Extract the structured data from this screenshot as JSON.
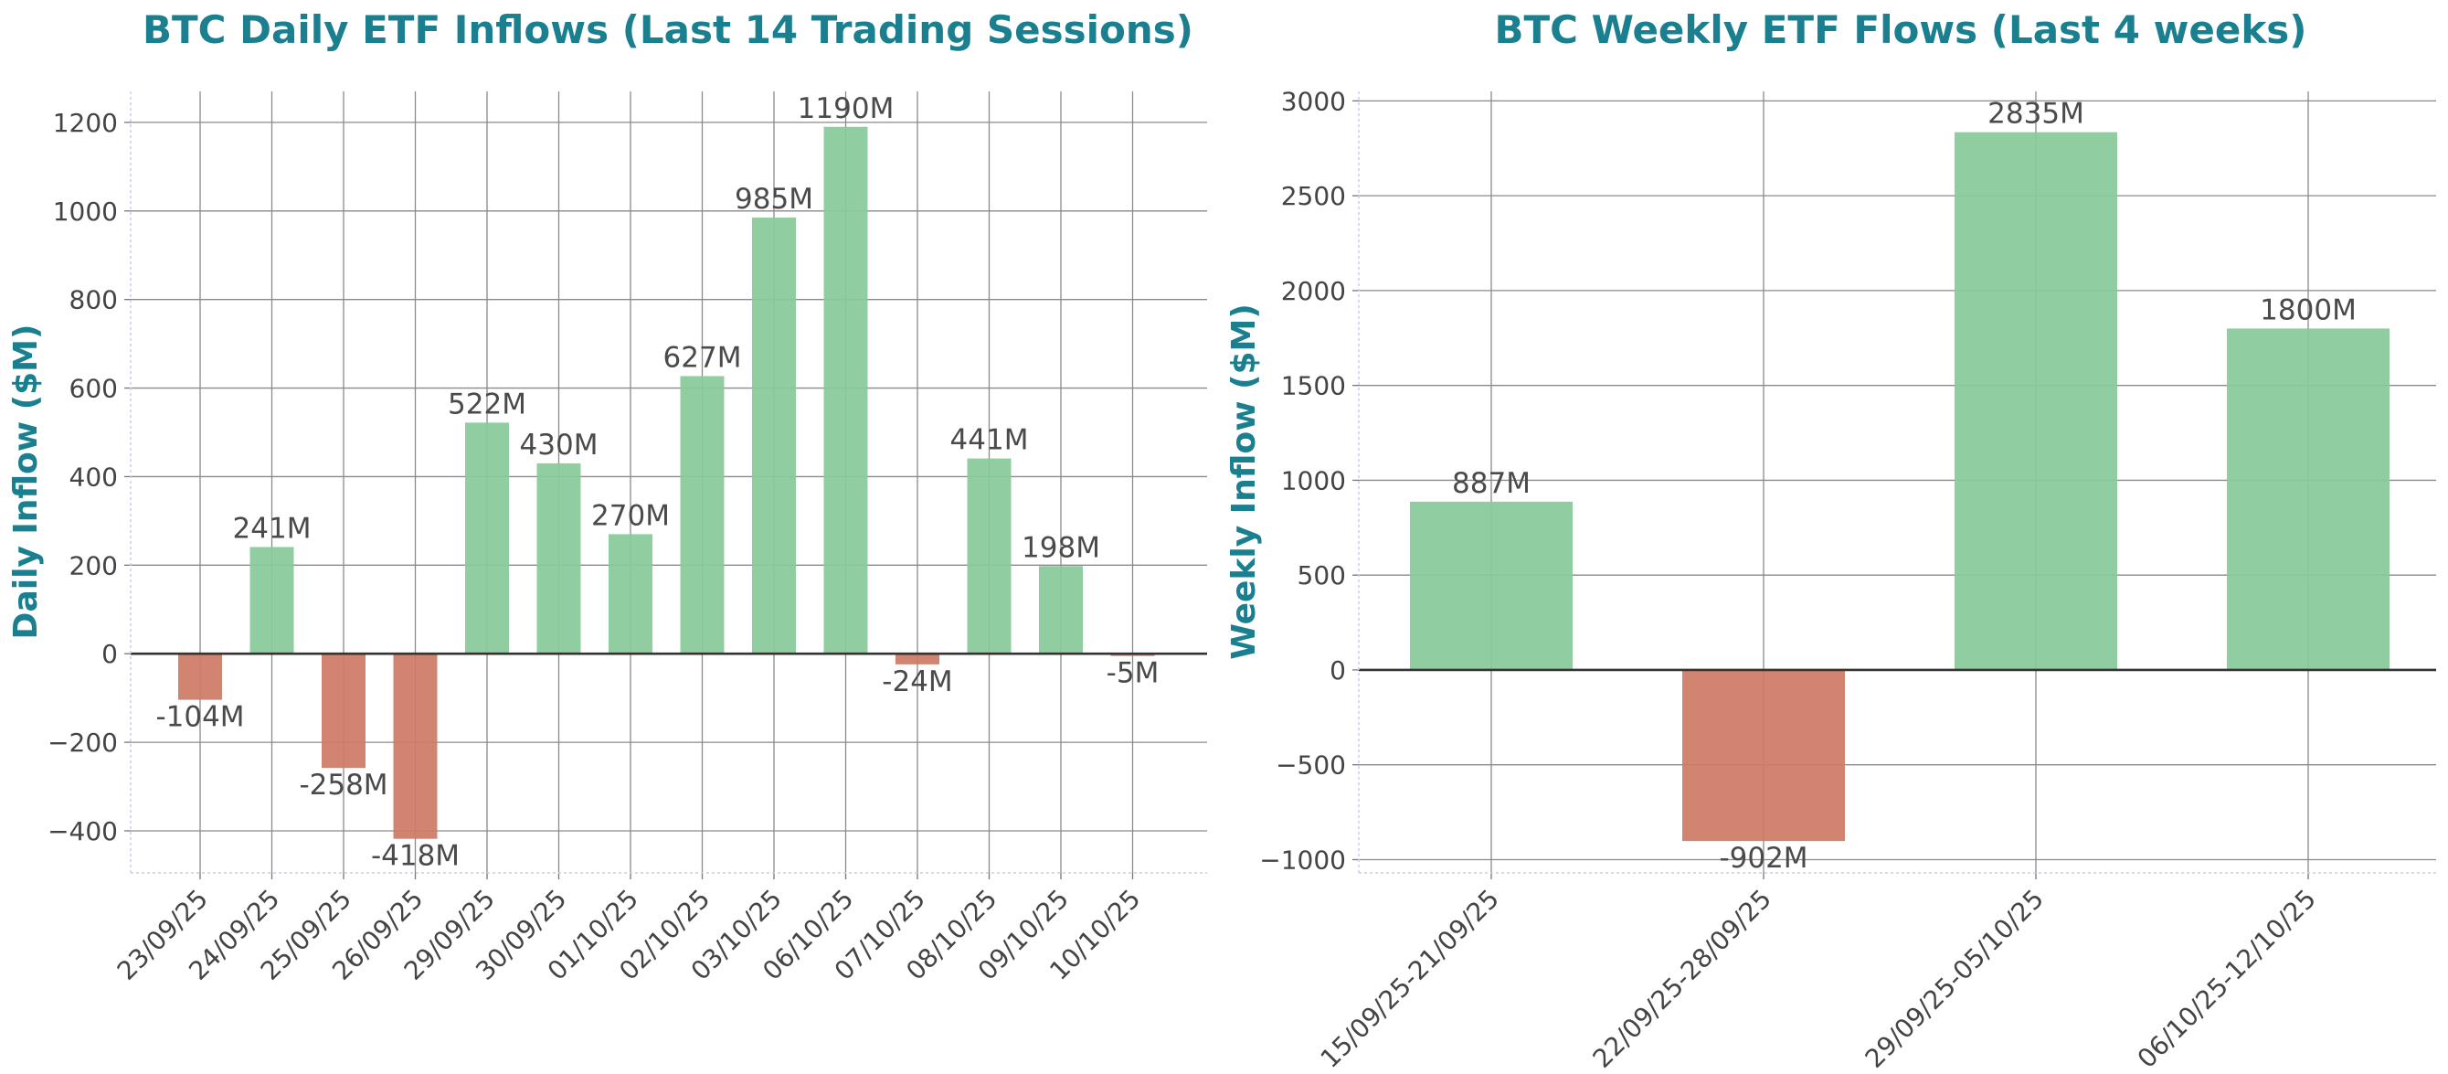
{
  "colors": {
    "title": "#1a7f8e",
    "positive": "#88c999",
    "negative": "#cd7b65",
    "grid": "#8a8a8a",
    "zero_line": "#333333",
    "text": "#444444"
  },
  "chart_data": [
    {
      "type": "bar",
      "title": "BTC Daily ETF Inflows (Last 14 Trading Sessions)",
      "xlabel": "",
      "ylabel": "Daily Inflow ($M)",
      "categories": [
        "23/09/25",
        "24/09/25",
        "25/09/25",
        "26/09/25",
        "29/09/25",
        "30/09/25",
        "01/10/25",
        "02/10/25",
        "03/10/25",
        "06/10/25",
        "07/10/25",
        "08/10/25",
        "09/10/25",
        "10/10/25"
      ],
      "values": [
        -104,
        241,
        -258,
        -418,
        522,
        430,
        270,
        627,
        985,
        1190,
        -24,
        441,
        198,
        -5
      ],
      "value_labels": [
        "-104M",
        "241M",
        "-258M",
        "-418M",
        "522M",
        "430M",
        "270M",
        "627M",
        "985M",
        "1190M",
        "-24M",
        "441M",
        "198M",
        "-5M"
      ],
      "ylim": [
        -495,
        1270
      ],
      "yticks": [
        -400,
        -200,
        0,
        200,
        400,
        600,
        800,
        1000,
        1200
      ],
      "ytick_labels": [
        "−400",
        "−200",
        "0",
        "200",
        "400",
        "600",
        "800",
        "1000",
        "1200"
      ],
      "grid": true,
      "legend": "none"
    },
    {
      "type": "bar",
      "title": "BTC Weekly ETF Flows (Last 4 weeks)",
      "xlabel": "",
      "ylabel": "Weekly Inflow ($M)",
      "categories": [
        "15/09/25-21/09/25",
        "22/09/25-28/09/25",
        "29/09/25-05/10/25",
        "06/10/25-12/10/25"
      ],
      "values": [
        887,
        -902,
        2835,
        1800
      ],
      "value_labels": [
        "887M",
        "-902M",
        "2835M",
        "1800M"
      ],
      "ylim": [
        -1070,
        3050
      ],
      "yticks": [
        -1000,
        -500,
        0,
        500,
        1000,
        1500,
        2000,
        2500,
        3000
      ],
      "ytick_labels": [
        "−1000",
        "−500",
        "0",
        "500",
        "1000",
        "1500",
        "2000",
        "2500",
        "3000"
      ],
      "grid": true,
      "legend": "none"
    }
  ]
}
